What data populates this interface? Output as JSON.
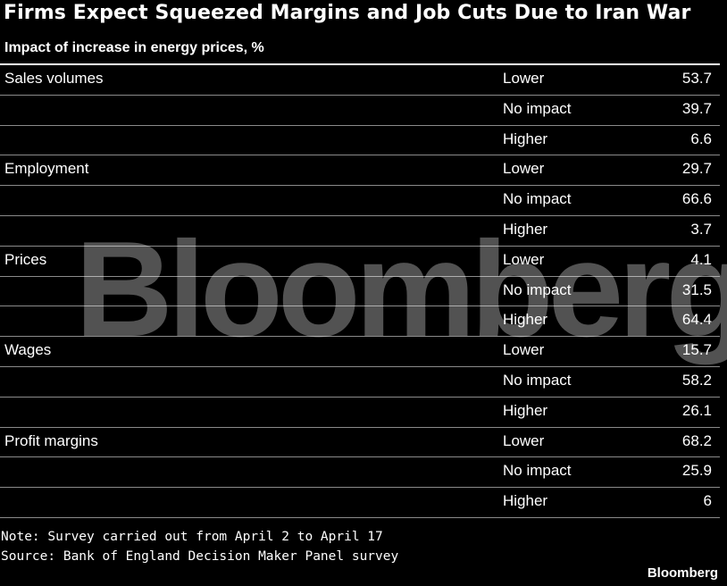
{
  "title": "Firms Expect Squeezed Margins and Job Cuts Due to Iran War",
  "subtitle": "Impact of increase in energy prices, %",
  "watermark": "Bloomberg",
  "note": "Note: Survey carried out from April 2 to April 17",
  "source": "Source: Bank of England Decision Maker Panel survey",
  "brand": "Bloomberg",
  "chart_data": {
    "type": "table",
    "title": "Firms Expect Squeezed Margins and Job Cuts Due to Iran War",
    "subtitle": "Impact of increase in energy prices, %",
    "rows": [
      {
        "category": "Sales volumes",
        "response": "Lower",
        "value": "53.7"
      },
      {
        "category": "",
        "response": "No impact",
        "value": "39.7"
      },
      {
        "category": "",
        "response": "Higher",
        "value": "6.6"
      },
      {
        "category": "Employment",
        "response": "Lower",
        "value": "29.7"
      },
      {
        "category": "",
        "response": "No impact",
        "value": "66.6"
      },
      {
        "category": "",
        "response": "Higher",
        "value": "3.7"
      },
      {
        "category": "Prices",
        "response": "Lower",
        "value": "4.1"
      },
      {
        "category": "",
        "response": "No impact",
        "value": "31.5"
      },
      {
        "category": "",
        "response": "Higher",
        "value": "64.4"
      },
      {
        "category": "Wages",
        "response": "Lower",
        "value": "15.7"
      },
      {
        "category": "",
        "response": "No impact",
        "value": "58.2"
      },
      {
        "category": "",
        "response": "Higher",
        "value": "26.1"
      },
      {
        "category": "Profit margins",
        "response": "Lower",
        "value": "68.2"
      },
      {
        "category": "",
        "response": "No impact",
        "value": "25.9"
      },
      {
        "category": "",
        "response": "Higher",
        "value": "6"
      }
    ]
  }
}
